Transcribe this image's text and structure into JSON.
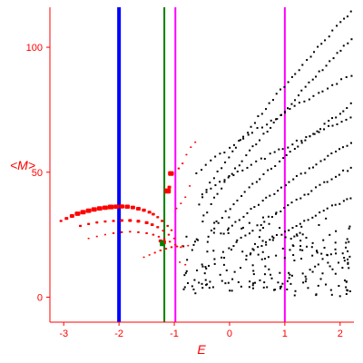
{
  "chart_data": {
    "type": "scatter",
    "xlabel": "E",
    "ylabel": "<M>",
    "xlim": [
      -3.25,
      2.25
    ],
    "ylim": [
      -10,
      116
    ],
    "grid": false,
    "axis_color": "#ff0000",
    "x_ticks": [
      {
        "value": -3,
        "label": "-3"
      },
      {
        "value": -2,
        "label": "-2"
      },
      {
        "value": -1,
        "label": "-1"
      },
      {
        "value": 0,
        "label": "0"
      },
      {
        "value": 1,
        "label": "1"
      },
      {
        "value": 2,
        "label": "2"
      }
    ],
    "y_ticks": [
      {
        "value": 0,
        "label": "0"
      },
      {
        "value": 50,
        "label": "50"
      },
      {
        "value": 100,
        "label": "100"
      }
    ],
    "vertical_lines": [
      {
        "x": -2.0,
        "color": "#0000ff",
        "weight": "thick"
      },
      {
        "x": -1.18,
        "color": "#008000",
        "weight": "normal"
      },
      {
        "x": -0.98,
        "color": "#ff00ff",
        "weight": "normal"
      },
      {
        "x": 1.0,
        "color": "#ff00ff",
        "weight": "normal"
      }
    ],
    "red_series": {
      "color": "#ff0000",
      "points": [
        [
          -3.05,
          30.5,
          1.5
        ],
        [
          -2.95,
          31.5,
          2
        ],
        [
          -2.85,
          32.5,
          2.5
        ],
        [
          -2.75,
          33.4,
          3
        ],
        [
          -2.65,
          34.0,
          3
        ],
        [
          -2.55,
          34.6,
          3
        ],
        [
          -2.45,
          35.1,
          3
        ],
        [
          -2.35,
          35.5,
          3
        ],
        [
          -2.25,
          35.8,
          3
        ],
        [
          -2.15,
          36.1,
          3.2
        ],
        [
          -2.05,
          36.2,
          3
        ],
        [
          -1.95,
          36.3,
          2.8
        ],
        [
          -1.85,
          36.2,
          2.8
        ],
        [
          -1.75,
          35.9,
          2.5
        ],
        [
          -1.65,
          35.4,
          2.5
        ],
        [
          -1.55,
          34.8,
          2.2
        ],
        [
          -1.45,
          34.0,
          2
        ],
        [
          -1.38,
          33.2,
          1.8
        ],
        [
          -1.3,
          32.0,
          1.5
        ],
        [
          -1.22,
          30.5,
          1.5
        ],
        [
          -1.12,
          28.5,
          1.3
        ],
        [
          -1.05,
          26.8,
          1.2
        ],
        [
          -2.7,
          28.5,
          1.5
        ],
        [
          -2.55,
          29.3,
          1.5
        ],
        [
          -2.4,
          29.9,
          1.5
        ],
        [
          -2.25,
          30.3,
          1.5
        ],
        [
          -2.1,
          30.5,
          1.5
        ],
        [
          -1.95,
          30.7,
          1.8
        ],
        [
          -1.8,
          30.7,
          2
        ],
        [
          -1.65,
          30.4,
          2
        ],
        [
          -1.5,
          29.8,
          2
        ],
        [
          -1.4,
          29.0,
          1.8
        ],
        [
          -1.3,
          28.0,
          1.5
        ],
        [
          -1.2,
          26.6,
          1.3
        ],
        [
          -1.1,
          25.0,
          1.2
        ],
        [
          -1.0,
          23.5,
          1.1
        ],
        [
          -2.55,
          23.5,
          1
        ],
        [
          -2.4,
          24.3,
          1
        ],
        [
          -2.25,
          25.0,
          1
        ],
        [
          -2.1,
          25.6,
          1.2
        ],
        [
          -1.95,
          26.0,
          1.2
        ],
        [
          -1.8,
          26.2,
          1.2
        ],
        [
          -1.65,
          26.0,
          1.3
        ],
        [
          -1.5,
          25.6,
          1.3
        ],
        [
          -1.38,
          25.0,
          1.3
        ],
        [
          -1.28,
          24.2,
          1.2
        ],
        [
          -1.18,
          23.3,
          1.2
        ],
        [
          -1.08,
          22.2,
          1.2
        ],
        [
          -0.98,
          21.0,
          1.1
        ],
        [
          -0.88,
          20.0,
          1.1
        ],
        [
          -1.55,
          16.0,
          1
        ],
        [
          -1.45,
          16.9,
          1
        ],
        [
          -1.35,
          17.8,
          1.1
        ],
        [
          -1.25,
          18.7,
          1.2
        ],
        [
          -1.15,
          19.4,
          1.2
        ],
        [
          -1.05,
          20.0,
          1.2
        ],
        [
          -0.95,
          20.3,
          1.2
        ],
        [
          -0.85,
          20.5,
          1.1
        ],
        [
          -0.75,
          20.6,
          1
        ],
        [
          -1.06,
          49.5,
          3.2
        ],
        [
          -1.12,
          42.5,
          3.5
        ],
        [
          -1.09,
          44.0,
          2
        ],
        [
          -1.2,
          22.0,
          3
        ],
        [
          -1.25,
          22.5,
          2
        ],
        [
          -0.92,
          51.5,
          1.2
        ],
        [
          -0.85,
          53.5,
          1.1
        ],
        [
          -0.78,
          57.0,
          1
        ],
        [
          -0.7,
          60.0,
          1
        ],
        [
          -0.62,
          62.0,
          1
        ],
        [
          -0.96,
          35.5,
          1
        ],
        [
          -0.88,
          37.5,
          1
        ],
        [
          -0.8,
          40.0,
          1
        ],
        [
          -0.72,
          44.5,
          1
        ],
        [
          -0.9,
          14.0,
          1
        ],
        [
          -0.8,
          13.0,
          1
        ]
      ]
    },
    "dark_marker": {
      "x": -1.22,
      "y": 21.5,
      "color": "#008000"
    },
    "black_series": {
      "color": "#000000",
      "bands": [
        {
          "x0": -0.55,
          "y0": 37,
          "x1": 2.2,
          "y1": 114.5,
          "n": 42
        },
        {
          "x0": -0.4,
          "y0": 34,
          "x1": 2.2,
          "y1": 103,
          "n": 42
        },
        {
          "x0": -0.6,
          "y0": 49,
          "x1": 2.2,
          "y1": 89,
          "n": 34
        },
        {
          "x0": -0.2,
          "y0": 30,
          "x1": 2.2,
          "y1": 77,
          "n": 36
        },
        {
          "x0": -0.5,
          "y0": 41,
          "x1": 2.2,
          "y1": 72,
          "n": 34
        },
        {
          "x0": -0.1,
          "y0": 25,
          "x1": 2.2,
          "y1": 62,
          "n": 34
        },
        {
          "x0": 0.0,
          "y0": 19,
          "x1": 2.2,
          "y1": 52,
          "n": 32
        },
        {
          "x0": 0.3,
          "y0": 16,
          "x1": 2.2,
          "y1": 40,
          "n": 28
        }
      ],
      "cloud": {
        "x0": -0.85,
        "x1": 2.2,
        "y0": -2,
        "y1": 33,
        "n": 220,
        "seed": 7
      }
    }
  }
}
